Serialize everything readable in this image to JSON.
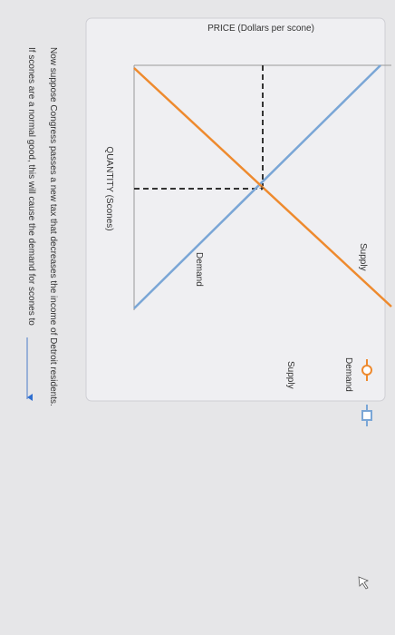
{
  "graph": {
    "price_axis_label": "PRICE (Dollars per scone)",
    "quantity_axis_label": "QUANTITY (Scones)",
    "curve_labels": {
      "orange": "Supply",
      "blue": "Demand"
    }
  },
  "legend": [
    {
      "label": "Demand"
    },
    {
      "label": "Supply"
    }
  ],
  "question": {
    "line1": "Now suppose Congress passes a new tax that decreases the income of Detroit residents.",
    "line2": "If scones are a normal good, this will cause the demand for scones to"
  }
}
